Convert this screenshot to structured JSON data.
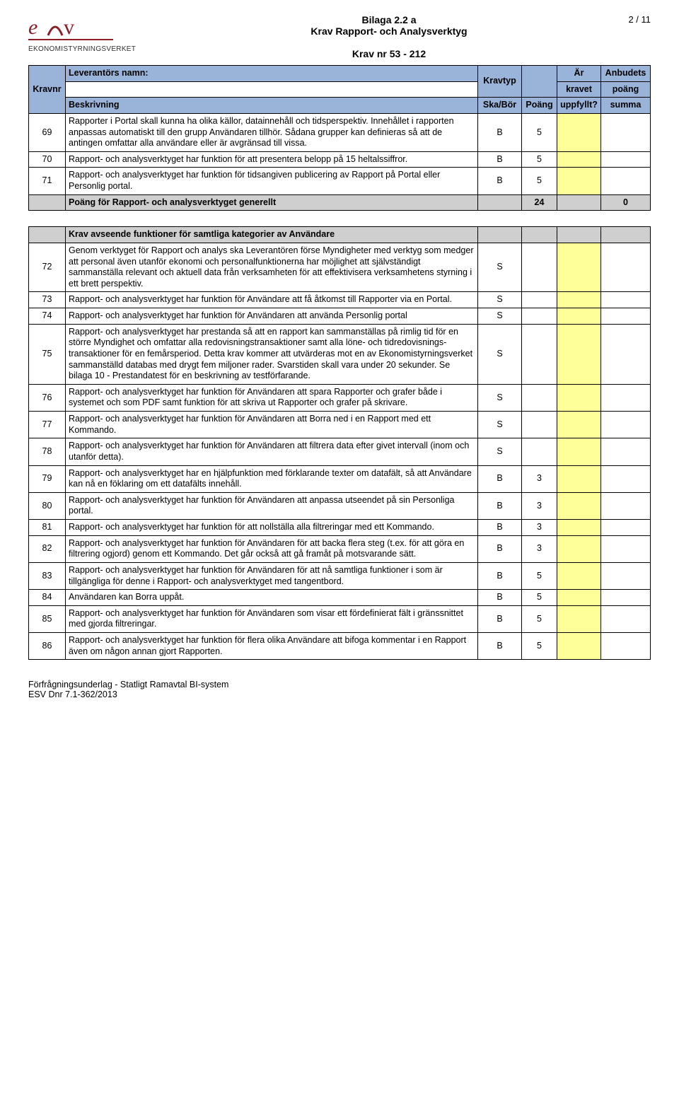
{
  "meta": {
    "page_label": "2 / 11",
    "bilaga": "Bilaga 2.2 a",
    "title": "Krav Rapport- och Analysverktyg",
    "krav_range": "Krav nr 53 - 212",
    "logo_org": "EKONOMISTYRNINGSVERKET",
    "logo_brand_color": "#8a1e27"
  },
  "head": {
    "leverantor_label": "Leverantörs namn:",
    "leverantor_value": "",
    "kravtyp": "Kravtyp",
    "ar": "Är",
    "anbudets": "Anbudets",
    "kravet": "kravet",
    "poang_hdr": "poäng",
    "kravnr": "Kravnr",
    "beskrivning": "Beskrivning",
    "skabor": "Ska/Bör",
    "poang": "Poäng",
    "uppfyllt": "uppfyllt?",
    "summa": "summa"
  },
  "rows1": [
    {
      "nr": "69",
      "desc": "Rapporter i Portal skall kunna ha olika källor, datainnehåll och tidsperspektiv. Innehållet i rapporten anpassas automatiskt till den grupp Användaren tillhör. Sådana grupper kan definieras så att de antingen omfattar alla användare eller är avgränsad till vissa.",
      "type": "B",
      "poang": "5",
      "uppf": "",
      "summa": ""
    },
    {
      "nr": "70",
      "desc": "Rapport- och analysverktyget har funktion för att presentera belopp på 15 heltalssiffror.",
      "type": "B",
      "poang": "5",
      "uppf": "",
      "summa": ""
    },
    {
      "nr": "71",
      "desc": "Rapport- och analysverktyget har funktion för tidsangiven publicering av Rapport på Portal eller Personlig portal.",
      "type": "B",
      "poang": "5",
      "uppf": "",
      "summa": ""
    }
  ],
  "sumrow1": {
    "label": "Poäng för Rapport- och analysverktyget generellt",
    "poang": "24",
    "summa": "0"
  },
  "section2_header": "Krav avseende funktioner för samtliga kategorier av Användare",
  "rows2": [
    {
      "nr": "72",
      "desc": "Genom verktyget för Rapport och analys ska Leverantören förse Myndigheter med verktyg som medger att personal även utanför ekonomi och personalfunktionerna har möjlighet att självständigt sammanställa relevant och aktuell data från verksamheten för att effektivisera verksamhetens styrning i ett brett perspektiv.",
      "type": "S",
      "poang": "",
      "uppf": "",
      "summa": ""
    },
    {
      "nr": "73",
      "desc": "Rapport- och analysverktyget har funktion för Användare att få åtkomst till Rapporter via en Portal.",
      "type": "S",
      "poang": "",
      "uppf": "",
      "summa": ""
    },
    {
      "nr": "74",
      "desc": "Rapport- och analysverktyget har funktion för Användaren att använda Personlig portal",
      "type": "S",
      "poang": "",
      "uppf": "",
      "summa": ""
    },
    {
      "nr": "75",
      "desc": "Rapport- och analysverktyget har prestanda så att en rapport kan sammanställas på rimlig tid för en större Myndighet och omfattar alla redovisningstransaktioner samt alla löne- och tidredovisnings-transaktioner för en femårsperiod. Detta krav kommer att utvärderas mot en av Ekonomistyrningsverket sammanställd databas med drygt fem miljoner rader. Svarstiden skall vara under 20 sekunder. Se bilaga 10 - Prestandatest för en beskrivning av testförfarande.",
      "type": "S",
      "poang": "",
      "uppf": "",
      "summa": ""
    },
    {
      "nr": "76",
      "desc": "Rapport- och analysverktyget har funktion för Användaren att spara Rapporter och grafer både i systemet och som PDF samt funktion för att skriva ut Rapporter och grafer på skrivare.",
      "type": "S",
      "poang": "",
      "uppf": "",
      "summa": ""
    },
    {
      "nr": "77",
      "desc": "Rapport- och analysverktyget har funktion för Användaren att Borra ned i en Rapport med ett Kommando.",
      "type": "S",
      "poang": "",
      "uppf": "",
      "summa": ""
    },
    {
      "nr": "78",
      "desc": "Rapport- och analysverktyget har funktion för Användaren att filtrera data efter givet intervall (inom och utanför detta).",
      "type": "S",
      "poang": "",
      "uppf": "",
      "summa": ""
    },
    {
      "nr": "79",
      "desc": "Rapport- och analysverktyget har en hjälpfunktion med förklarande texter om datafält, så att Användare kan nå en föklaring om ett datafälts innehåll.",
      "type": "B",
      "poang": "3",
      "uppf": "",
      "summa": ""
    },
    {
      "nr": "80",
      "desc": "Rapport- och analysverktyget har funktion för Användaren att anpassa utseendet på sin Personliga portal.",
      "type": "B",
      "poang": "3",
      "uppf": "",
      "summa": ""
    },
    {
      "nr": "81",
      "desc": "Rapport- och analysverktyget har funktion för att nollställa alla filtreringar med ett Kommando.",
      "type": "B",
      "poang": "3",
      "uppf": "",
      "summa": ""
    },
    {
      "nr": "82",
      "desc": "Rapport- och analysverktyget har funktion för Användaren för att backa flera steg (t.ex. för att göra en filtrering ogjord) genom ett Kommando. Det går också att gå framåt på motsvarande sätt.",
      "type": "B",
      "poang": "3",
      "uppf": "",
      "summa": ""
    },
    {
      "nr": "83",
      "desc": "Rapport- och analysverktyget har funktion för Användaren för att nå samtliga funktioner i som är tillgängliga för denne i Rapport- och analysverktyget med tangentbord.",
      "type": "B",
      "poang": "5",
      "uppf": "",
      "summa": ""
    },
    {
      "nr": "84",
      "desc": "Användaren kan Borra uppåt.",
      "type": "B",
      "poang": "5",
      "uppf": "",
      "summa": ""
    },
    {
      "nr": "85",
      "desc": "Rapport- och analysverktyget har funktion för Användaren som visar ett fördefinierat fält i gränssnittet med gjorda filtreringar.",
      "type": "B",
      "poang": "5",
      "uppf": "",
      "summa": ""
    },
    {
      "nr": "86",
      "desc": "Rapport- och analysverktyget har funktion för flera olika Användare att bifoga kommentar i en Rapport även om någon annan gjort Rapporten.",
      "type": "B",
      "poang": "5",
      "uppf": "",
      "summa": ""
    }
  ],
  "footer": {
    "line1": "Förfrågningsunderlag - Statligt Ramavtal BI-system",
    "line2": "ESV Dnr 7.1-362/2013"
  },
  "colors": {
    "header_blue": "#99b3d9",
    "header_grey": "#cfcfcf",
    "yellow_input": "#ffff99",
    "border": "#000000",
    "background": "#ffffff"
  }
}
